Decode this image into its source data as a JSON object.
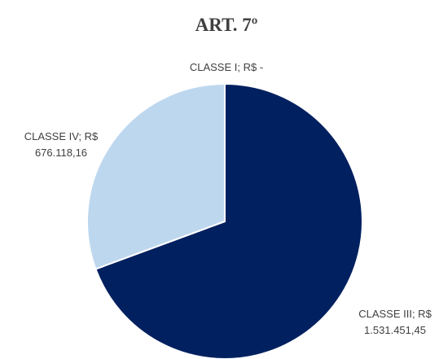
{
  "chart_data": {
    "type": "pie",
    "title": "ART. 7º",
    "labels": [
      "CLASSE I; R$ -",
      "CLASSE III; R$ 1.531.451,45",
      "CLASSE IV; R$ 676.118,16"
    ],
    "values": [
      0,
      1531451.45,
      676118.16
    ],
    "colors": [
      "#7f7f7f",
      "#002060",
      "#bdd7ee"
    ]
  }
}
